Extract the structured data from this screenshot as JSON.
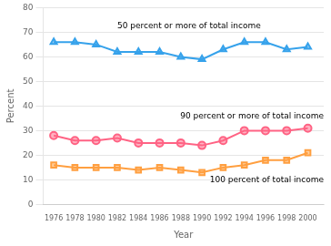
{
  "chart_data": {
    "type": "line",
    "x_label": "Year",
    "y_label": "Percent",
    "x": [
      1976,
      1978,
      1980,
      1982,
      1984,
      1986,
      1988,
      1990,
      1992,
      1994,
      1996,
      1998,
      2000
    ],
    "series": [
      {
        "name": "50 percent or more of total income",
        "marker": "triangle",
        "values": [
          66,
          66,
          65,
          62,
          62,
          62,
          60,
          59,
          63,
          66,
          66,
          63,
          64
        ]
      },
      {
        "name": "90 percent or more of total income",
        "marker": "circle",
        "values": [
          28,
          26,
          26,
          27,
          25,
          25,
          25,
          24,
          26,
          30,
          30,
          30,
          31
        ]
      },
      {
        "name": "100 percent of total income",
        "marker": "square",
        "values": [
          16,
          15,
          15,
          15,
          14,
          15,
          14,
          13,
          15,
          16,
          18,
          18,
          21
        ]
      }
    ],
    "annotations": [
      {
        "text": "50 percent or more of total income",
        "x": 1982,
        "y": 71
      },
      {
        "text": "90 percent or more of total income",
        "x": 1990,
        "y": 34
      },
      {
        "text": "100 percent of total income",
        "x": 1993,
        "y": 11.5
      }
    ],
    "xlim": [
      1975,
      2001.5
    ],
    "xticks": [
      1976,
      1978,
      1980,
      1982,
      1984,
      1986,
      1988,
      1990,
      1992,
      1994,
      1996,
      1998,
      2000
    ],
    "ylim": [
      0,
      80
    ],
    "yticks": [
      0,
      10,
      20,
      30,
      40,
      50,
      60,
      70,
      80
    ],
    "grid": "y"
  }
}
